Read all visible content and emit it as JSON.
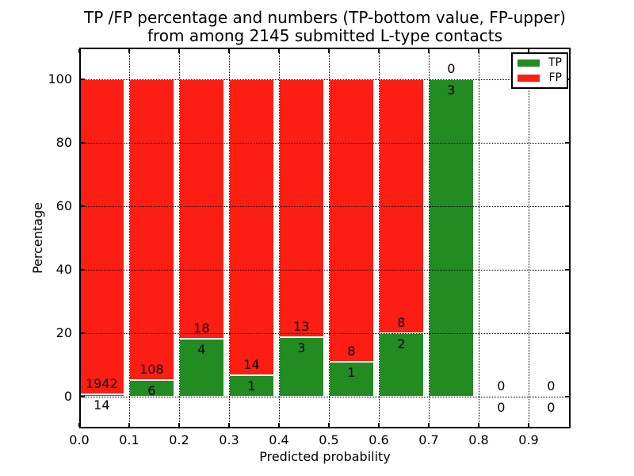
{
  "figure": {
    "title_line1": "TP /FP percentage and numbers (TP-bottom value, FP-upper)",
    "title_line2": "from among 2145 submitted L-type contacts",
    "background_color": "#ffffff"
  },
  "chart_data": {
    "type": "bar",
    "stacked": true,
    "normalized": "each bar totals 100 percent",
    "title": "TP /FP percentage and numbers (TP-bottom value, FP-upper) from among 2145 submitted L-type contacts",
    "xlabel": "Predicted probability",
    "ylabel": "Percentage",
    "total_submitted_contacts": 2145,
    "x_ticks": [
      "0.0",
      "0.1",
      "0.2",
      "0.3",
      "0.4",
      "0.5",
      "0.6",
      "0.7",
      "0.8",
      "0.9"
    ],
    "y_ticks": [
      "0",
      "20",
      "40",
      "60",
      "80",
      "100"
    ],
    "xlim": [
      0.0,
      0.984
    ],
    "ylim": [
      -10,
      110
    ],
    "grid": "dotted black, both axes",
    "bin_width": 0.1,
    "bar_width": 0.09,
    "annotation_scheme": "TP count below green top, FP count above green top",
    "bins": [
      {
        "x_start": 0.0,
        "x_end": 0.1,
        "tp": 14,
        "fp": 1942,
        "tp_pct": 0.72,
        "fp_pct": 99.28
      },
      {
        "x_start": 0.1,
        "x_end": 0.2,
        "tp": 6,
        "fp": 108,
        "tp_pct": 5.26,
        "fp_pct": 94.74
      },
      {
        "x_start": 0.2,
        "x_end": 0.3,
        "tp": 4,
        "fp": 18,
        "tp_pct": 18.18,
        "fp_pct": 81.82
      },
      {
        "x_start": 0.3,
        "x_end": 0.4,
        "tp": 1,
        "fp": 14,
        "tp_pct": 6.67,
        "fp_pct": 93.33
      },
      {
        "x_start": 0.4,
        "x_end": 0.5,
        "tp": 3,
        "fp": 13,
        "tp_pct": 18.75,
        "fp_pct": 81.25
      },
      {
        "x_start": 0.5,
        "x_end": 0.6,
        "tp": 1,
        "fp": 8,
        "tp_pct": 11.11,
        "fp_pct": 88.89
      },
      {
        "x_start": 0.6,
        "x_end": 0.7,
        "tp": 2,
        "fp": 8,
        "tp_pct": 20.0,
        "fp_pct": 80.0
      },
      {
        "x_start": 0.7,
        "x_end": 0.8,
        "tp": 3,
        "fp": 0,
        "tp_pct": 100.0,
        "fp_pct": 0.0
      },
      {
        "x_start": 0.8,
        "x_end": 0.9,
        "tp": 0,
        "fp": 0,
        "tp_pct": 0.0,
        "fp_pct": 0.0
      },
      {
        "x_start": 0.9,
        "x_end": 1.0,
        "tp": 0,
        "fp": 0,
        "tp_pct": 0.0,
        "fp_pct": 0.0
      }
    ],
    "legend": {
      "position": "upper right",
      "entries": [
        {
          "label": "TP",
          "color": "#228b22"
        },
        {
          "label": "FP",
          "color": "#fc1d13"
        }
      ]
    }
  }
}
